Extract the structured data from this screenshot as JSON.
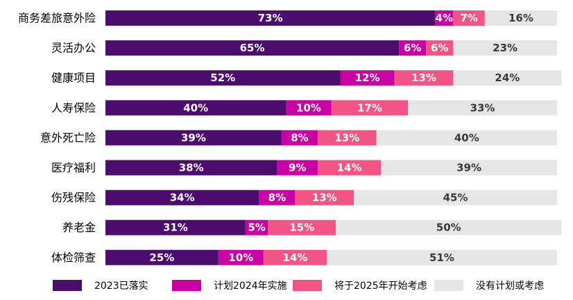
{
  "chart_data": {
    "type": "bar",
    "orientation": "horizontal",
    "stacked": true,
    "percent_stacked": true,
    "title": "",
    "xlabel": "",
    "ylabel": "",
    "xlim": [
      0,
      100
    ],
    "grid": false,
    "legend_position": "bottom",
    "categories": [
      "商务差旅意外险",
      "灵活办公",
      "健康项目",
      "人寿保险",
      "意外死亡险",
      "医疗福利",
      "伤残保险",
      "养老金",
      "体检筛查"
    ],
    "series": [
      {
        "name": "2023已落实",
        "color": "#4B0C6E",
        "label_color": "#ffffff",
        "values": [
          73,
          65,
          52,
          40,
          39,
          38,
          34,
          31,
          25
        ]
      },
      {
        "name": "计划2024年实施",
        "color": "#C900A4",
        "label_color": "#ffffff",
        "values": [
          4,
          6,
          12,
          10,
          8,
          9,
          8,
          5,
          10
        ]
      },
      {
        "name": "将于2025年开始考虑",
        "color": "#F25585",
        "label_color": "#ffffff",
        "values": [
          7,
          6,
          13,
          17,
          13,
          14,
          13,
          15,
          14
        ]
      },
      {
        "name": "没有计划或考虑",
        "color": "#E6E6E6",
        "label_color": "#3a3a3a",
        "values": [
          16,
          23,
          24,
          33,
          40,
          39,
          45,
          50,
          51
        ]
      }
    ]
  }
}
